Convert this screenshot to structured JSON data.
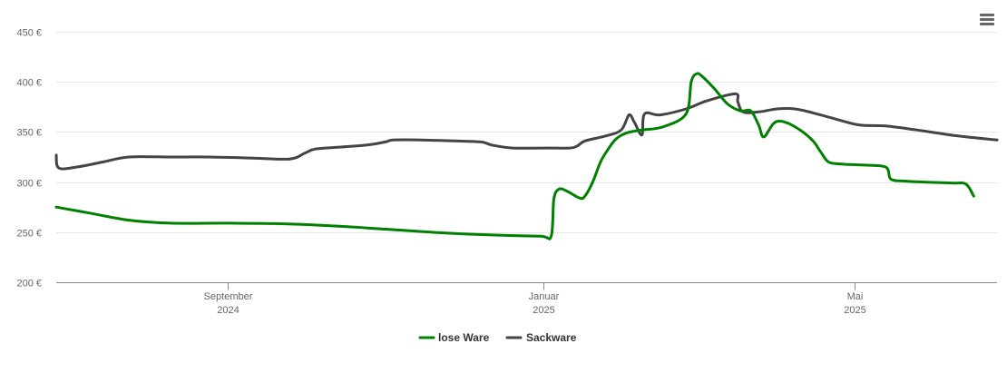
{
  "chart_data": {
    "type": "line",
    "title": "",
    "xlabel": "",
    "ylabel": "",
    "x_range": [
      "2024-06-27",
      "2025-06-25"
    ],
    "ylim": [
      200,
      450
    ],
    "y_ticks": [
      200,
      250,
      300,
      350,
      400,
      450
    ],
    "y_tick_labels": [
      "200 €",
      "250 €",
      "300 €",
      "350 €",
      "400 €",
      "450 €"
    ],
    "x_ticks": [
      {
        "date": "2024-09-01",
        "month": "September",
        "year": "2024"
      },
      {
        "date": "2025-01-01",
        "month": "Januar",
        "year": "2025"
      },
      {
        "date": "2025-05-01",
        "month": "Mai",
        "year": "2025"
      }
    ],
    "grid": true,
    "legend_position": "bottom-center",
    "series": [
      {
        "name": "lose Ware",
        "color": "#008000",
        "points": [
          [
            "2024-06-27",
            275
          ],
          [
            "2024-07-10",
            269
          ],
          [
            "2024-07-25",
            262
          ],
          [
            "2024-08-10",
            259
          ],
          [
            "2024-09-01",
            259
          ],
          [
            "2024-09-20",
            258.5
          ],
          [
            "2024-10-10",
            256.5
          ],
          [
            "2024-11-01",
            253
          ],
          [
            "2024-11-25",
            249
          ],
          [
            "2024-12-15",
            247
          ],
          [
            "2024-12-31",
            246
          ],
          [
            "2025-01-04",
            246
          ],
          [
            "2025-01-05",
            283
          ],
          [
            "2025-01-07",
            293
          ],
          [
            "2025-01-10",
            291
          ],
          [
            "2025-01-15",
            284
          ],
          [
            "2025-01-17",
            286
          ],
          [
            "2025-01-20",
            300
          ],
          [
            "2025-01-23",
            320
          ],
          [
            "2025-01-26",
            333
          ],
          [
            "2025-01-29",
            343
          ],
          [
            "2025-02-02",
            349
          ],
          [
            "2025-02-08",
            352
          ],
          [
            "2025-02-16",
            355
          ],
          [
            "2025-02-25",
            368
          ],
          [
            "2025-02-27",
            400
          ],
          [
            "2025-02-29",
            408
          ],
          [
            "2025-03-03",
            406
          ],
          [
            "2025-03-08",
            393
          ],
          [
            "2025-03-13",
            378
          ],
          [
            "2025-03-18",
            371
          ],
          [
            "2025-03-22",
            371
          ],
          [
            "2025-03-25",
            357
          ],
          [
            "2025-03-27",
            345
          ],
          [
            "2025-03-31",
            359
          ],
          [
            "2025-04-04",
            360
          ],
          [
            "2025-04-10",
            352
          ],
          [
            "2025-04-15",
            341
          ],
          [
            "2025-04-18",
            330
          ],
          [
            "2025-04-21",
            320
          ],
          [
            "2025-04-26",
            318
          ],
          [
            "2025-05-04",
            317
          ],
          [
            "2025-05-13",
            315
          ],
          [
            "2025-05-15",
            303
          ],
          [
            "2025-05-20",
            301
          ],
          [
            "2025-05-28",
            300
          ],
          [
            "2025-06-08",
            299
          ],
          [
            "2025-06-13",
            298
          ],
          [
            "2025-06-16",
            286
          ]
        ]
      },
      {
        "name": "Sackware",
        "color": "#434348",
        "points": [
          [
            "2024-06-27",
            327
          ],
          [
            "2024-06-28",
            314
          ],
          [
            "2024-07-05",
            315
          ],
          [
            "2024-07-15",
            320
          ],
          [
            "2024-07-25",
            325
          ],
          [
            "2024-08-10",
            325
          ],
          [
            "2024-08-25",
            325
          ],
          [
            "2024-09-10",
            324
          ],
          [
            "2024-09-25",
            323
          ],
          [
            "2024-10-01",
            329
          ],
          [
            "2024-10-05",
            333
          ],
          [
            "2024-10-15",
            335
          ],
          [
            "2024-10-25",
            337
          ],
          [
            "2024-11-01",
            340
          ],
          [
            "2024-11-04",
            342
          ],
          [
            "2024-11-15",
            342
          ],
          [
            "2024-11-28",
            341
          ],
          [
            "2024-12-08",
            340
          ],
          [
            "2024-12-12",
            337
          ],
          [
            "2024-12-20",
            334
          ],
          [
            "2025-01-01",
            334
          ],
          [
            "2025-01-11",
            334
          ],
          [
            "2025-01-14",
            336
          ],
          [
            "2025-01-17",
            341
          ],
          [
            "2025-01-25",
            346
          ],
          [
            "2025-01-31",
            352
          ],
          [
            "2025-02-03",
            367
          ],
          [
            "2025-02-05",
            360
          ],
          [
            "2025-02-08",
            347
          ],
          [
            "2025-02-09",
            368
          ],
          [
            "2025-02-15",
            367
          ],
          [
            "2025-02-25",
            373
          ],
          [
            "2025-03-05",
            381
          ],
          [
            "2025-03-16",
            388
          ],
          [
            "2025-03-17",
            380
          ],
          [
            "2025-03-19",
            370
          ],
          [
            "2025-03-25",
            370
          ],
          [
            "2025-04-01",
            373
          ],
          [
            "2025-04-08",
            373
          ],
          [
            "2025-04-15",
            369
          ],
          [
            "2025-04-25",
            362
          ],
          [
            "2025-05-03",
            357
          ],
          [
            "2025-05-13",
            356
          ],
          [
            "2025-05-25",
            352
          ],
          [
            "2025-06-10",
            346
          ],
          [
            "2025-06-25",
            342
          ]
        ]
      }
    ]
  },
  "icons": {
    "menu": "hamburger-menu-icon"
  }
}
